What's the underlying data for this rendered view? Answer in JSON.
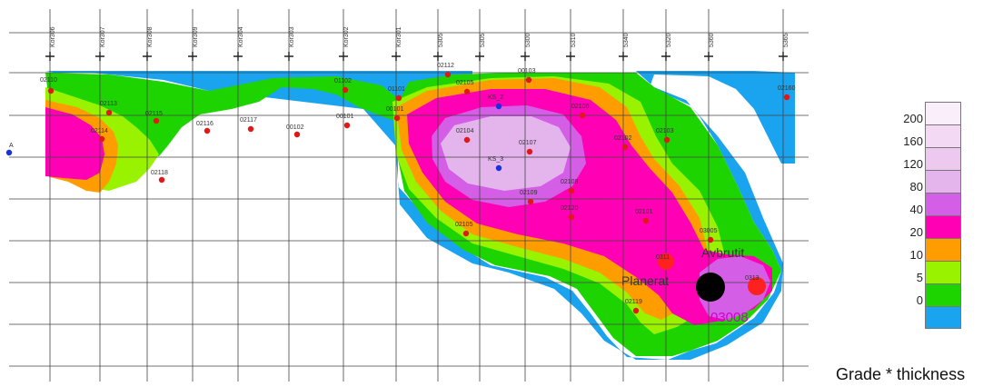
{
  "map": {
    "top_ticks": [
      "Kor306",
      "Kor307",
      "Kor308",
      "Kor309",
      "Kor304",
      "Kor303",
      "Kor302",
      "Kor301",
      "5305",
      "5305",
      "5300",
      "5310",
      "5340",
      "5320",
      "5360",
      "5365"
    ],
    "drillholes": [
      {
        "label": "02110",
        "color": "#e01818"
      },
      {
        "label": "02113",
        "color": "#e01818"
      },
      {
        "label": "02114",
        "color": "#e01818"
      },
      {
        "label": "02115",
        "color": "#e01818"
      },
      {
        "label": "02116",
        "color": "#e01818"
      },
      {
        "label": "02118",
        "color": "#e01818"
      },
      {
        "label": "02117",
        "color": "#e01818"
      },
      {
        "label": "00102",
        "color": "#e01818"
      },
      {
        "label": "01102",
        "color": "#e01818"
      },
      {
        "label": "00101",
        "color": "#e01818"
      },
      {
        "label": "01101",
        "color": "#e01818"
      },
      {
        "label": "00101",
        "color": "#e01818"
      },
      {
        "label": "02112",
        "color": "#e01818"
      },
      {
        "label": "02105",
        "color": "#e01818"
      },
      {
        "label": "00103",
        "color": "#e01818"
      },
      {
        "label": "KS_2",
        "color": "#1830e0"
      },
      {
        "label": "02106",
        "color": "#e01818"
      },
      {
        "label": "02104",
        "color": "#e01818"
      },
      {
        "label": "02107",
        "color": "#e01818"
      },
      {
        "label": "KS_3",
        "color": "#1830e0"
      },
      {
        "label": "02102",
        "color": "#e01818"
      },
      {
        "label": "02103",
        "color": "#e01818"
      },
      {
        "label": "02108",
        "color": "#e01818"
      },
      {
        "label": "02109",
        "color": "#e01818"
      },
      {
        "label": "02120",
        "color": "#e01818"
      },
      {
        "label": "02105",
        "color": "#e01818"
      },
      {
        "label": "02101",
        "color": "#e01818"
      },
      {
        "label": "03005",
        "color": "#e01818"
      },
      {
        "label": "02119",
        "color": "#e01818"
      },
      {
        "label": "02160",
        "color": "#e01818"
      },
      {
        "label": "A",
        "color": "#1830e0"
      }
    ],
    "annotations": {
      "avbrutit": "Avbrutit",
      "planerat": "Planerat",
      "hole_03008": "03008",
      "small_red_1": "0311",
      "small_red_2": "0313"
    }
  },
  "legend": {
    "title": "Grade * thickness",
    "labels": [
      "200",
      "160",
      "120",
      "80",
      "40",
      "20",
      "10",
      "5",
      "0"
    ],
    "colors": [
      "#fbeefb",
      "#f3d9f3",
      "#edc9ef",
      "#e4b5ec",
      "#d45ee6",
      "#ff00b4",
      "#ff9d00",
      "#99f200",
      "#1ed400",
      "#1aa3ee"
    ]
  }
}
